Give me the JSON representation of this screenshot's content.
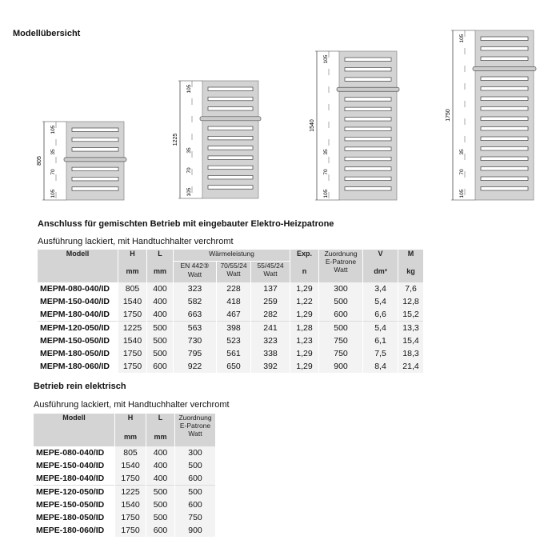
{
  "title": "Modellübersicht",
  "diagrams": [
    {
      "height_label": "805",
      "dims": [
        "105",
        "35",
        "70",
        "105"
      ]
    },
    {
      "height_label": "1225",
      "dims": [
        "105",
        "35",
        "70",
        "105"
      ]
    },
    {
      "height_label": "1540",
      "dims": [
        "105",
        "35",
        "70",
        "105"
      ]
    },
    {
      "height_label": "1750",
      "dims": [
        "105",
        "35",
        "70",
        "105"
      ]
    }
  ],
  "section1": {
    "title": "Anschluss für gemischten Betrieb mit eingebauter Elektro-Heizpatrone",
    "subtitle": "Ausführung lackiert, mit Handtuchhalter verchromt",
    "headers": {
      "modell": "Modell",
      "h": "H",
      "h_unit": "mm",
      "l": "L",
      "l_unit": "mm",
      "waerme": "Wärmeleistung",
      "en": "EN 442③",
      "en_unit": "Watt",
      "t70": "70/55/24",
      "t70_unit": "Watt",
      "t55": "55/45/24",
      "t55_unit": "Watt",
      "exp": "Exp.",
      "exp_unit": "n",
      "zuord": "Zuordnung",
      "zuord2": "E-Patrone",
      "zuord_unit": "Watt",
      "v": "V",
      "v_unit": "dm³",
      "m": "M",
      "m_unit": "kg"
    },
    "rows": [
      [
        "MEPM-080-040/ID",
        "805",
        "400",
        "323",
        "228",
        "137",
        "1,29",
        "300",
        "3,4",
        "7,6"
      ],
      [
        "MEPM-150-040/ID",
        "1540",
        "400",
        "582",
        "418",
        "259",
        "1,22",
        "500",
        "5,4",
        "12,8"
      ],
      [
        "MEPM-180-040/ID",
        "1750",
        "400",
        "663",
        "467",
        "282",
        "1,29",
        "600",
        "6,6",
        "15,2"
      ],
      [
        "MEPM-120-050/ID",
        "1225",
        "500",
        "563",
        "398",
        "241",
        "1,28",
        "500",
        "5,4",
        "13,3"
      ],
      [
        "MEPM-150-050/ID",
        "1540",
        "500",
        "730",
        "523",
        "323",
        "1,23",
        "750",
        "6,1",
        "15,4"
      ],
      [
        "MEPM-180-050/ID",
        "1750",
        "500",
        "795",
        "561",
        "338",
        "1,29",
        "750",
        "7,5",
        "18,3"
      ],
      [
        "MEPM-180-060/ID",
        "1750",
        "600",
        "922",
        "650",
        "392",
        "1,29",
        "900",
        "8,4",
        "21,4"
      ]
    ]
  },
  "section2": {
    "title": "Betrieb rein elektrisch",
    "subtitle": "Ausführung lackiert, mit Handtuchhalter verchromt",
    "headers": {
      "modell": "Modell",
      "h": "H",
      "h_unit": "mm",
      "l": "L",
      "l_unit": "mm",
      "zuord": "Zuordnung",
      "zuord2": "E-Patrone",
      "zuord_unit": "Watt"
    },
    "rows": [
      [
        "MEPE-080-040/ID",
        "805",
        "400",
        "300"
      ],
      [
        "MEPE-150-040/ID",
        "1540",
        "400",
        "500"
      ],
      [
        "MEPE-180-040/ID",
        "1750",
        "400",
        "600"
      ],
      [
        "MEPE-120-050/ID",
        "1225",
        "500",
        "500"
      ],
      [
        "MEPE-150-050/ID",
        "1540",
        "500",
        "600"
      ],
      [
        "MEPE-180-050/ID",
        "1750",
        "500",
        "750"
      ],
      [
        "MEPE-180-060/ID",
        "1750",
        "600",
        "900"
      ]
    ]
  }
}
